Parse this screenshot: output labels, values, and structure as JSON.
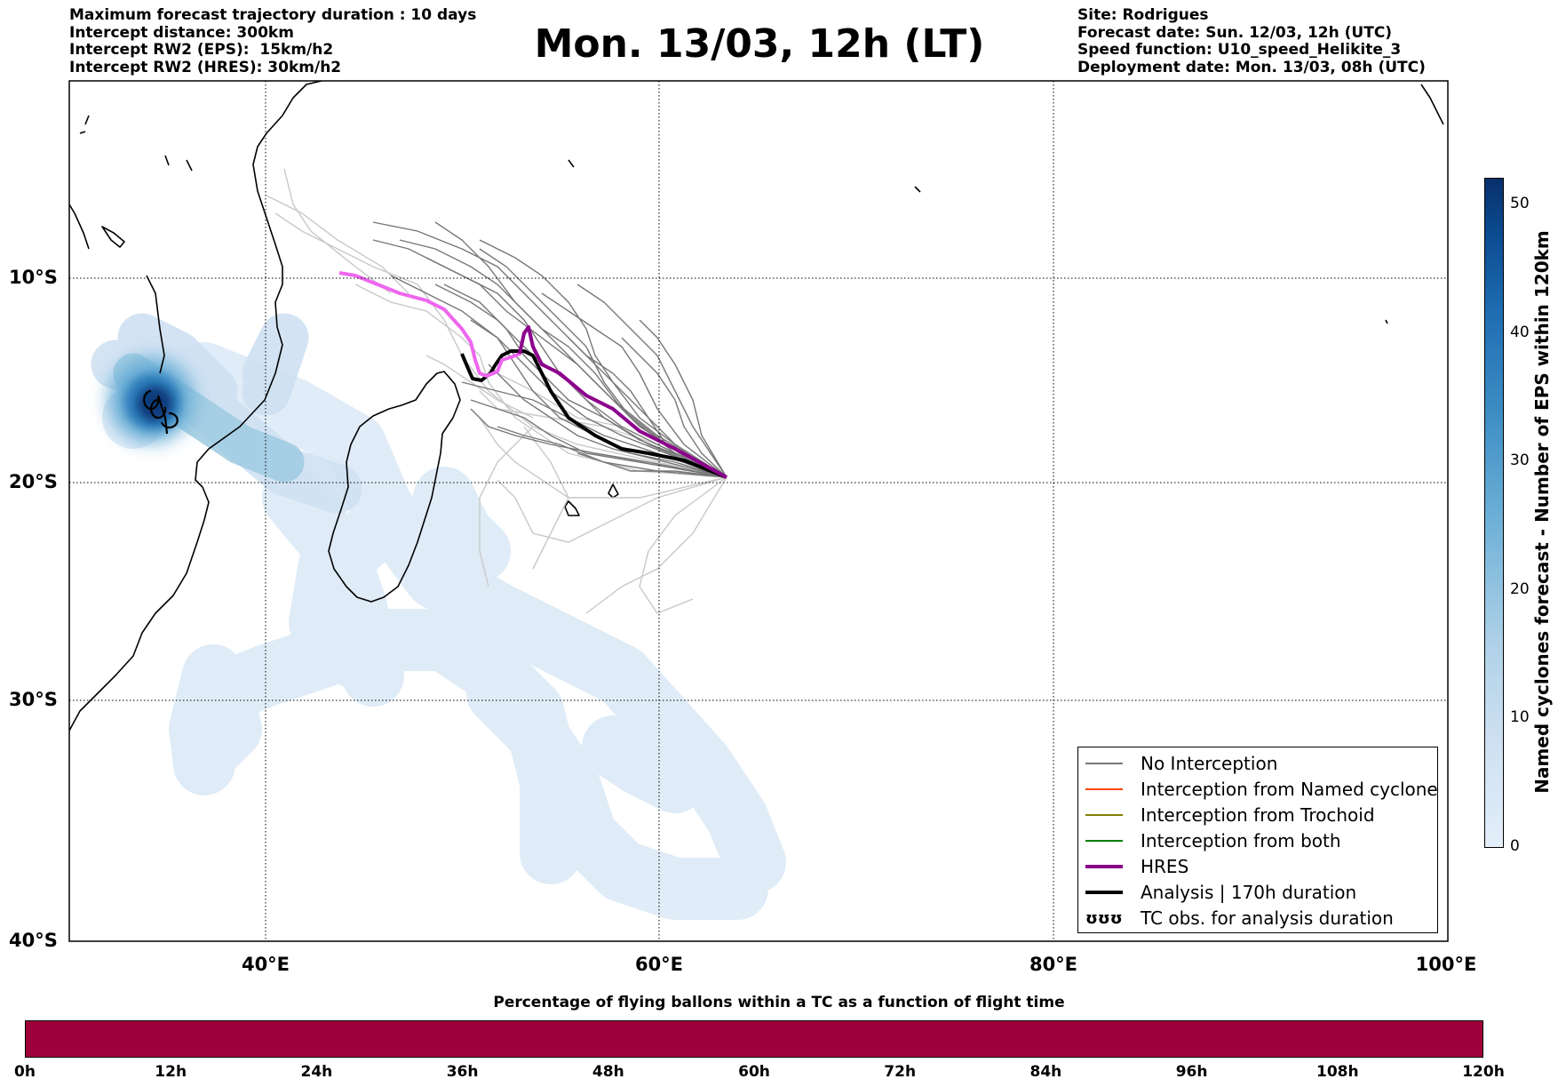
{
  "header": {
    "title": "Mon. 13/03, 12h (LT)",
    "left_lines": [
      "Maximum forecast trajectory duration : 10 days",
      "Intercept distance: 300km",
      "Intercept RW2 (EPS):  15km/h2",
      "Intercept RW2 (HRES): 30km/h2"
    ],
    "right_lines": [
      "Site: Rodrigues",
      "Forecast date: Sun. 12/03, 12h (UTC)",
      "Speed function: U10_speed_Helikite_3",
      "Deployment date: Mon. 13/03, 08h (UTC)"
    ]
  },
  "map": {
    "lat_labels": [
      "10°S",
      "20°S",
      "30°S",
      "40°S"
    ],
    "lon_labels": [
      "40°E",
      "60°E",
      "80°E",
      "100°E"
    ],
    "colors": {
      "hres": "#8b008b",
      "hres_light": "#ee66ee",
      "analysis": "#000000",
      "eps": "#777777",
      "eps_light": "#c8c8c8"
    }
  },
  "legend": {
    "items": [
      {
        "label": "No Interception",
        "color": "#777777",
        "style": "thin"
      },
      {
        "label": "Interception from Named cyclone",
        "color": "#ff4500",
        "style": "thin"
      },
      {
        "label": "Interception from Trochoid",
        "color": "#808000",
        "style": "thin"
      },
      {
        "label": "Interception from both",
        "color": "#008000",
        "style": "thin"
      },
      {
        "label": "HRES",
        "color": "#8b008b",
        "style": "thick"
      },
      {
        "label": "Analysis | 170h duration",
        "color": "#000000",
        "style": "thick"
      },
      {
        "label": "TC obs. for analysis duration",
        "color": "#000000",
        "style": "symbol",
        "symbol": "ʊʊʊ"
      }
    ]
  },
  "colorbar": {
    "label": "Named cyclones forecast - Number of EPS within 120km",
    "ticks": [
      "0",
      "10",
      "20",
      "30",
      "40",
      "50"
    ]
  },
  "time_bar": {
    "title": "Percentage of flying ballons within a TC as a function of flight time",
    "color": "#9e003b",
    "ticks": [
      "0h",
      "12h",
      "24h",
      "36h",
      "48h",
      "60h",
      "72h",
      "84h",
      "96h",
      "108h",
      "120h"
    ]
  }
}
